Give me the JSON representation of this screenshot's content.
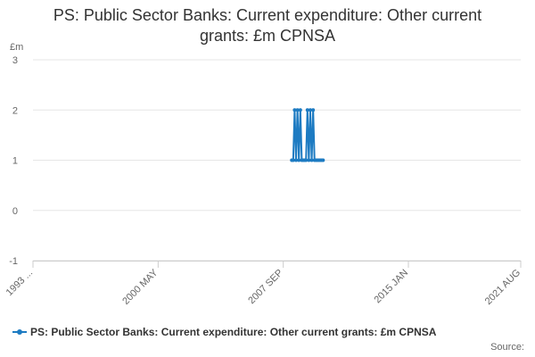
{
  "title": {
    "line1": "PS: Public Sector Banks: Current expenditure: Other current",
    "line2": "grants: £m CPNSA"
  },
  "source_label": "Source:",
  "colors": {
    "series": "#1d7bc2",
    "grid": "#e6e6e6",
    "axis": "#cccccc",
    "text": "#333333",
    "tick_text": "#666666"
  },
  "chart_data": {
    "type": "line",
    "unit": "£m",
    "ylim": [
      -1,
      3
    ],
    "yticks": [
      -1,
      0,
      1,
      2,
      3
    ],
    "xlim": [
      "1993-01",
      "2021-08"
    ],
    "xticks": [
      {
        "value": "1993-01",
        "label": "1993 ..."
      },
      {
        "value": "2000-05",
        "label": "2000 MAY"
      },
      {
        "value": "2007-09",
        "label": "2007 SEP"
      },
      {
        "value": "2015-01",
        "label": "2015 JAN"
      },
      {
        "value": "2021-08",
        "label": "2021 AUG"
      }
    ],
    "grid": true,
    "legend": "bottom-left",
    "series": [
      {
        "name": "PS: Public Sector Banks: Current expenditure: Other current grants: £m CPNSA",
        "x": [
          "2008-03",
          "2008-04",
          "2008-05",
          "2008-06",
          "2008-07",
          "2008-08",
          "2008-09",
          "2008-10",
          "2008-11",
          "2008-12",
          "2009-01",
          "2009-02",
          "2009-03",
          "2009-04",
          "2009-05",
          "2009-06",
          "2009-07",
          "2009-08",
          "2009-09",
          "2009-10",
          "2009-11",
          "2009-12",
          "2010-01"
        ],
        "values": [
          1,
          1,
          2,
          1,
          2,
          1,
          2,
          1,
          1,
          1,
          1,
          2,
          1,
          2,
          1,
          2,
          1,
          1,
          1,
          1,
          1,
          1,
          1
        ]
      }
    ]
  }
}
